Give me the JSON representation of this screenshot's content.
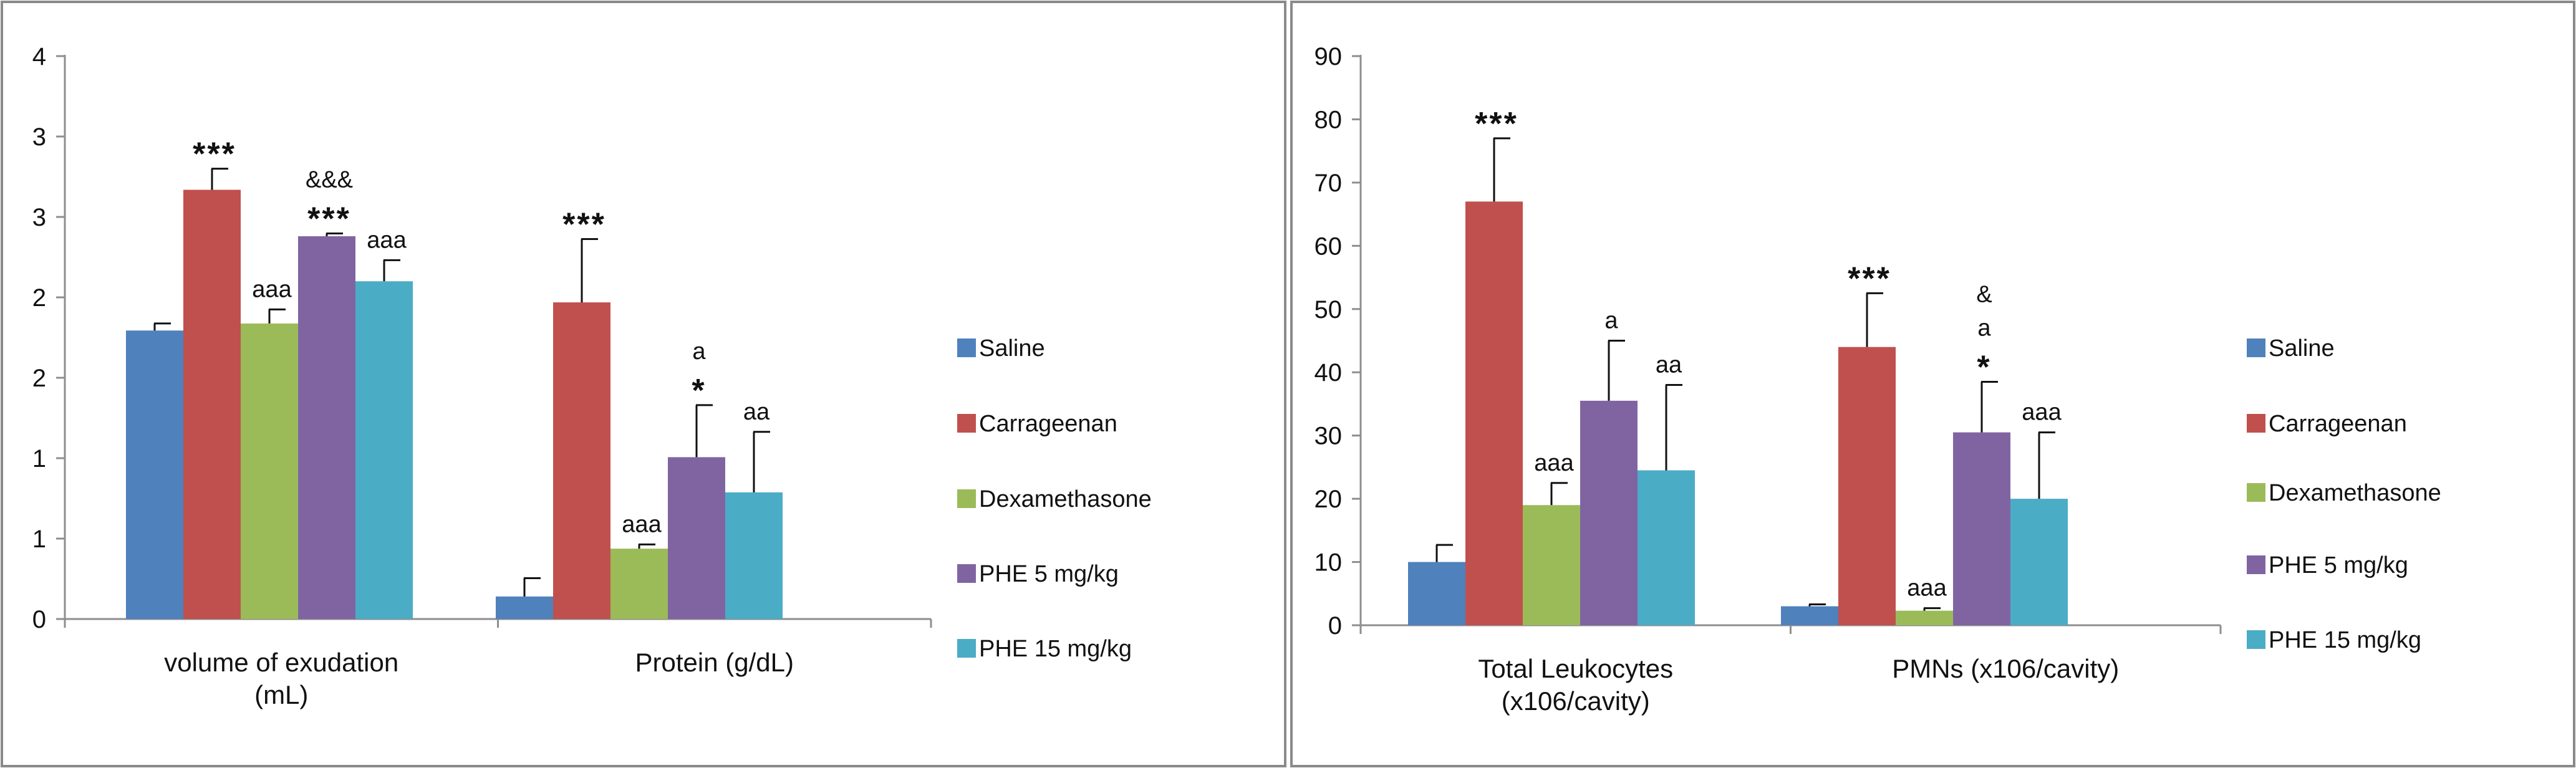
{
  "chart_data": [
    {
      "type": "bar",
      "title": "",
      "xlabel": "",
      "ylabel": "",
      "ylim": [
        0,
        4
      ],
      "y_tick_labels": [
        "0",
        "1",
        "1",
        "2",
        "2",
        "3",
        "3",
        "4"
      ],
      "category_label_lines": [
        [
          "volume of exudation",
          "(mL)"
        ],
        [
          "Protein (g/dL)"
        ]
      ],
      "series": [
        {
          "name": "Saline",
          "color": "#4f81bd",
          "values": [
            2.05,
            0.16
          ],
          "errors": [
            0.05,
            0.13
          ],
          "annotations": [
            [],
            []
          ]
        },
        {
          "name": "Carrageenan",
          "color": "#c0504d",
          "values": [
            3.05,
            2.25
          ],
          "errors": [
            0.15,
            0.45
          ],
          "annotations": [
            [
              "***"
            ],
            [
              "***"
            ]
          ]
        },
        {
          "name": "Dexamethasone",
          "color": "#9bbb59",
          "values": [
            2.1,
            0.5
          ],
          "errors": [
            0.1,
            0.03
          ],
          "annotations": [
            [
              "aaa"
            ],
            [
              "aaa"
            ]
          ]
        },
        {
          "name": "PHE 5 mg/kg",
          "color": "#8064a2",
          "values": [
            2.72,
            1.15
          ],
          "errors": [
            0.02,
            0.37
          ],
          "annotations": [
            [
              "&&&",
              "***"
            ],
            [
              "a",
              "*"
            ]
          ]
        },
        {
          "name": "PHE 15 mg/kg",
          "color": "#4bacc6",
          "values": [
            2.4,
            0.9
          ],
          "errors": [
            0.15,
            0.43
          ],
          "annotations": [
            [
              "aaa"
            ],
            [
              "aa"
            ]
          ]
        }
      ],
      "legend": {
        "position": "right",
        "entries": [
          "Saline",
          "Carrageenan",
          "Dexamethasone",
          "PHE 5 mg/kg",
          "PHE 15 mg/kg"
        ]
      }
    },
    {
      "type": "bar",
      "title": "",
      "xlabel": "",
      "ylabel": "",
      "ylim": [
        0,
        90
      ],
      "y_tick_labels": [
        "0",
        "10",
        "20",
        "30",
        "40",
        "50",
        "60",
        "70",
        "80",
        "90"
      ],
      "category_label_lines": [
        [
          "Total Leukocytes",
          "(x106/cavity)"
        ],
        [
          "PMNs (x106/cavity)"
        ]
      ],
      "series": [
        {
          "name": "Saline",
          "color": "#4f81bd",
          "values": [
            10,
            3
          ],
          "errors": [
            2.7,
            0.3
          ],
          "annotations": [
            [],
            []
          ]
        },
        {
          "name": "Carrageenan",
          "color": "#c0504d",
          "values": [
            67,
            44
          ],
          "errors": [
            10,
            8.5
          ],
          "annotations": [
            [
              "***"
            ],
            [
              "***"
            ]
          ]
        },
        {
          "name": "Dexamethasone",
          "color": "#9bbb59",
          "values": [
            19,
            2.3
          ],
          "errors": [
            3.5,
            0.4
          ],
          "annotations": [
            [
              "aaa"
            ],
            [
              "aaa"
            ]
          ]
        },
        {
          "name": "PHE 5 mg/kg",
          "color": "#8064a2",
          "values": [
            35.5,
            30.5
          ],
          "errors": [
            9.5,
            8
          ],
          "annotations": [
            [
              "a"
            ],
            [
              "&",
              "a",
              "*"
            ]
          ]
        },
        {
          "name": "PHE 15 mg/kg",
          "color": "#4bacc6",
          "values": [
            24.5,
            20
          ],
          "errors": [
            13.5,
            10.5
          ],
          "annotations": [
            [
              "aa"
            ],
            [
              "aaa"
            ]
          ]
        }
      ],
      "legend": {
        "position": "right",
        "entries": [
          "Saline",
          "Carrageenan",
          "Dexamethasone",
          "PHE 5 mg/kg",
          "PHE 15 mg/kg"
        ]
      }
    }
  ]
}
